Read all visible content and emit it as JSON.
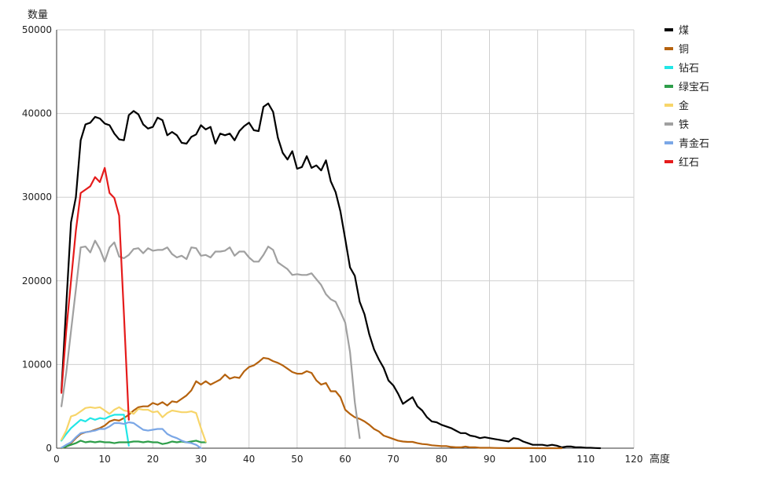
{
  "chart_data": {
    "type": "line",
    "title": "",
    "xlabel": "高度",
    "ylabel": "数量",
    "xlim": [
      0,
      120
    ],
    "ylim": [
      0,
      50000
    ],
    "xticks": [
      0,
      10,
      20,
      30,
      40,
      50,
      60,
      70,
      80,
      90,
      100,
      110,
      120
    ],
    "yticks": [
      0,
      10000,
      20000,
      30000,
      40000,
      50000
    ],
    "grid": true,
    "legend_position": "right",
    "series": [
      {
        "name": "煤",
        "color": "#000000",
        "x": [
          1,
          2,
          3,
          4,
          5,
          6,
          7,
          8,
          9,
          10,
          11,
          12,
          13,
          14,
          15,
          16,
          17,
          18,
          19,
          20,
          21,
          22,
          23,
          24,
          25,
          26,
          27,
          28,
          29,
          30,
          31,
          32,
          33,
          34,
          35,
          36,
          37,
          38,
          39,
          40,
          41,
          42,
          43,
          44,
          45,
          46,
          47,
          48,
          49,
          50,
          51,
          52,
          53,
          54,
          55,
          56,
          57,
          58,
          59,
          60,
          61,
          62,
          63,
          64,
          65,
          66,
          67,
          68,
          69,
          70,
          71,
          72,
          73,
          74,
          75,
          76,
          77,
          78,
          79,
          80,
          81,
          82,
          83,
          84,
          85,
          86,
          87,
          88,
          89,
          90,
          91,
          92,
          93,
          94,
          95,
          96,
          97,
          98,
          99,
          100,
          101,
          102,
          103,
          104,
          105,
          106,
          107,
          108,
          109,
          110,
          111,
          112,
          113
        ],
        "y": [
          6800,
          17000,
          27000,
          30000,
          36800,
          38700,
          38900,
          39600,
          39400,
          38800,
          38600,
          37600,
          36900,
          36800,
          39800,
          40300,
          39900,
          38700,
          38200,
          38400,
          39500,
          39200,
          37400,
          37800,
          37400,
          36500,
          36400,
          37200,
          37500,
          38600,
          38100,
          38400,
          36400,
          37600,
          37400,
          37600,
          36800,
          37900,
          38500,
          38900,
          38000,
          37900,
          40800,
          41200,
          40200,
          37100,
          35300,
          34500,
          35500,
          33400,
          33600,
          34900,
          33500,
          33800,
          33200,
          34400,
          31900,
          30600,
          28300,
          25000,
          21600,
          20600,
          17500,
          16000,
          13600,
          11800,
          10600,
          9600,
          8100,
          7500,
          6500,
          5300,
          5700,
          6100,
          5000,
          4500,
          3700,
          3200,
          3100,
          2800,
          2600,
          2400,
          2100,
          1800,
          1800,
          1500,
          1400,
          1200,
          1300,
          1200,
          1100,
          1000,
          900,
          800,
          1200,
          1100,
          800,
          600,
          400,
          400,
          400,
          300,
          400,
          300,
          100,
          200,
          200,
          100,
          100,
          50,
          50,
          20,
          0
        ]
      },
      {
        "name": "铜",
        "color": "#b5620e",
        "x": [
          1,
          2,
          3,
          4,
          5,
          6,
          7,
          8,
          9,
          10,
          11,
          12,
          13,
          14,
          15,
          16,
          17,
          18,
          19,
          20,
          21,
          22,
          23,
          24,
          25,
          26,
          27,
          28,
          29,
          30,
          31,
          32,
          33,
          34,
          35,
          36,
          37,
          38,
          39,
          40,
          41,
          42,
          43,
          44,
          45,
          46,
          47,
          48,
          49,
          50,
          51,
          52,
          53,
          54,
          55,
          56,
          57,
          58,
          59,
          60,
          61,
          62,
          63,
          64,
          65,
          66,
          67,
          68,
          69,
          70,
          71,
          72,
          73,
          74,
          75,
          76,
          77,
          78,
          79,
          80,
          81,
          82,
          83,
          84,
          85,
          86,
          87,
          88,
          89,
          90,
          91,
          92,
          93,
          94,
          95,
          96,
          97,
          98,
          99,
          100,
          101,
          102,
          103,
          104,
          105
        ],
        "y": [
          0,
          200,
          600,
          1200,
          1700,
          1900,
          2000,
          2200,
          2400,
          2700,
          3200,
          3400,
          3300,
          3600,
          4000,
          4500,
          4900,
          5000,
          5000,
          5400,
          5200,
          5500,
          5100,
          5600,
          5500,
          5900,
          6300,
          6900,
          8000,
          7600,
          8000,
          7600,
          7900,
          8200,
          8800,
          8300,
          8500,
          8400,
          9200,
          9700,
          9900,
          10300,
          10800,
          10700,
          10400,
          10200,
          9900,
          9500,
          9100,
          8900,
          8900,
          9200,
          9000,
          8100,
          7600,
          7800,
          6800,
          6800,
          6100,
          4600,
          4100,
          3700,
          3500,
          3200,
          2800,
          2300,
          2000,
          1500,
          1300,
          1100,
          900,
          800,
          750,
          750,
          600,
          500,
          450,
          350,
          300,
          250,
          250,
          150,
          100,
          100,
          200,
          100,
          100,
          50,
          50,
          50,
          30,
          20,
          20,
          10,
          10,
          10,
          5,
          5,
          5,
          0,
          0,
          0,
          0,
          0,
          0
        ]
      },
      {
        "name": "钻石",
        "color": "#22e6e6",
        "x": [
          1,
          2,
          3,
          4,
          5,
          6,
          7,
          8,
          9,
          10,
          11,
          12,
          13,
          14,
          15
        ],
        "y": [
          900,
          1700,
          2400,
          2900,
          3400,
          3200,
          3600,
          3400,
          3600,
          3500,
          3800,
          4000,
          4000,
          4000,
          300
        ]
      },
      {
        "name": "绿宝石",
        "color": "#2e9e4a",
        "x": [
          1,
          2,
          3,
          4,
          5,
          6,
          7,
          8,
          9,
          10,
          11,
          12,
          13,
          14,
          15,
          16,
          17,
          18,
          19,
          20,
          21,
          22,
          23,
          24,
          25,
          26,
          27,
          28,
          29,
          30,
          31
        ],
        "y": [
          50,
          200,
          400,
          600,
          900,
          700,
          800,
          700,
          800,
          700,
          700,
          600,
          700,
          700,
          700,
          800,
          800,
          700,
          800,
          700,
          700,
          500,
          600,
          800,
          700,
          800,
          700,
          800,
          900,
          700,
          700
        ]
      },
      {
        "name": "金",
        "color": "#f7d56a",
        "x": [
          1,
          2,
          3,
          4,
          5,
          6,
          7,
          8,
          9,
          10,
          11,
          12,
          13,
          14,
          15,
          16,
          17,
          18,
          19,
          20,
          21,
          22,
          23,
          24,
          25,
          26,
          27,
          28,
          29,
          30,
          31
        ],
        "y": [
          1000,
          2100,
          3800,
          4000,
          4400,
          4800,
          4900,
          4800,
          4900,
          4500,
          4100,
          4600,
          4900,
          4500,
          4400,
          4100,
          4700,
          4600,
          4600,
          4300,
          4400,
          3700,
          4200,
          4500,
          4400,
          4300,
          4300,
          4400,
          4200,
          2400,
          800
        ]
      },
      {
        "name": "铁",
        "color": "#a0a0a0",
        "x": [
          1,
          2,
          3,
          4,
          5,
          6,
          7,
          8,
          9,
          10,
          11,
          12,
          13,
          14,
          15,
          16,
          17,
          18,
          19,
          20,
          21,
          22,
          23,
          24,
          25,
          26,
          27,
          28,
          29,
          30,
          31,
          32,
          33,
          34,
          35,
          36,
          37,
          38,
          39,
          40,
          41,
          42,
          43,
          44,
          45,
          46,
          47,
          48,
          49,
          50,
          51,
          52,
          53,
          54,
          55,
          56,
          57,
          58,
          59,
          60,
          61,
          62,
          63
        ],
        "y": [
          5000,
          9000,
          14000,
          19000,
          24000,
          24100,
          23400,
          24800,
          23800,
          22300,
          24000,
          24600,
          22900,
          22700,
          23100,
          23800,
          23900,
          23300,
          23900,
          23600,
          23700,
          23700,
          24000,
          23200,
          22800,
          23000,
          22600,
          24000,
          23900,
          23000,
          23100,
          22800,
          23500,
          23500,
          23600,
          24000,
          23000,
          23500,
          23500,
          22800,
          22300,
          22300,
          23100,
          24100,
          23700,
          22200,
          21800,
          21400,
          20700,
          20800,
          20700,
          20700,
          20900,
          20200,
          19500,
          18400,
          17800,
          17500,
          16300,
          15000,
          11500,
          5500,
          1200
        ]
      },
      {
        "name": "青金石",
        "color": "#7ba7e6",
        "x": [
          1,
          2,
          3,
          4,
          5,
          6,
          7,
          8,
          9,
          10,
          11,
          12,
          13,
          14,
          15,
          16,
          17,
          18,
          19,
          20,
          21,
          22,
          23,
          24,
          25,
          26,
          27,
          28,
          29,
          30
        ],
        "y": [
          50,
          400,
          700,
          1300,
          1800,
          1900,
          2000,
          2100,
          2300,
          2300,
          2600,
          3000,
          3000,
          2900,
          3100,
          3000,
          2600,
          2200,
          2100,
          2200,
          2300,
          2300,
          1700,
          1400,
          1200,
          900,
          700,
          600,
          400,
          0
        ]
      },
      {
        "name": "红石",
        "color": "#e51b1b",
        "x": [
          1,
          2,
          3,
          4,
          5,
          6,
          7,
          8,
          9,
          10,
          11,
          12,
          13,
          14,
          15
        ],
        "y": [
          6600,
          14000,
          20000,
          26000,
          30500,
          30900,
          31300,
          32400,
          31800,
          33500,
          30500,
          29900,
          27800,
          16000,
          3400
        ]
      }
    ]
  }
}
